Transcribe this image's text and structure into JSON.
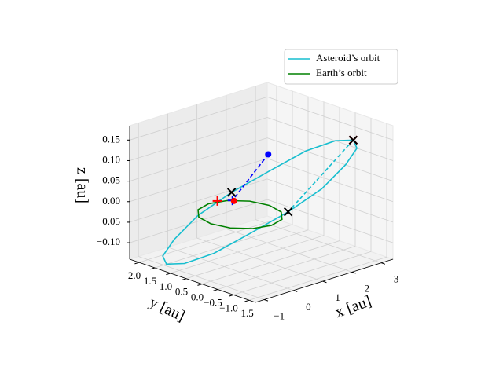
{
  "chart_data": {
    "type": "line3d",
    "xlabel": "x [au]",
    "ylabel": "y [au]",
    "zlabel": "z [au]",
    "xlim": [
      -1.3,
      3.4
    ],
    "ylim": [
      -1.7,
      2.3
    ],
    "zlim": [
      -0.14,
      0.185
    ],
    "xticks": [
      {
        "value": -1,
        "label": "−1"
      },
      0,
      1,
      2,
      3
    ],
    "yticks": [
      {
        "value": -1.5,
        "label": "−1.5"
      },
      {
        "value": -1.0,
        "label": "−1.0"
      },
      {
        "value": -0.5,
        "label": "−0.5"
      },
      {
        "value": 0,
        "label": "0.0"
      },
      {
        "value": 0.5,
        "label": "0.5"
      },
      {
        "value": 1,
        "label": "1.0"
      },
      {
        "value": 1.5,
        "label": "1.5"
      },
      {
        "value": 2,
        "label": "2.0"
      }
    ],
    "zticks": [
      {
        "value": -0.1,
        "label": "−0.10"
      },
      {
        "value": -0.05,
        "label": "−0.05"
      },
      {
        "value": 0,
        "label": "0.00"
      },
      {
        "value": 0.05,
        "label": "0.05"
      },
      {
        "value": 0.1,
        "label": "0.10"
      },
      {
        "value": 0.15,
        "label": "0.15"
      }
    ],
    "grid": true,
    "legend": "upper right",
    "series": [
      {
        "name": "Asteroid’s orbit",
        "color": "#17becf",
        "x": [
          2.9,
          2.76,
          2.34,
          1.73,
          1,
          0.27,
          -0.34,
          -0.76,
          -0.9,
          -0.76,
          -0.34,
          0.27,
          1,
          1.73,
          2.34,
          2.76,
          2.9
        ],
        "y": [
          -0.9,
          -0.46,
          0.09,
          0.67,
          1.2,
          1.59,
          1.78,
          1.75,
          1.5,
          1.06,
          0.51,
          -0.07,
          -0.6,
          -0.99,
          -1.18,
          -1.15,
          -0.9
        ],
        "z": [
          0.14,
          0.13,
          0.1,
          0.05,
          0,
          -0.05,
          -0.1,
          -0.13,
          -0.14,
          -0.13,
          -0.1,
          -0.05,
          0,
          0.05,
          0.1,
          0.13,
          0.14
        ]
      },
      {
        "name": "Earth’s orbit",
        "color": "#008000",
        "x": [
          1,
          0.87,
          0.5,
          0,
          -0.5,
          -0.87,
          -1,
          -0.87,
          -0.5,
          0,
          0.5,
          0.87,
          1
        ],
        "y": [
          0,
          0.5,
          0.87,
          1,
          0.87,
          0.5,
          0,
          -0.5,
          -0.87,
          -1,
          -0.87,
          -0.5,
          0
        ],
        "z": [
          0,
          0,
          0,
          0,
          0,
          0,
          0,
          0,
          0,
          0,
          0,
          0,
          0
        ]
      }
    ],
    "segments": [
      {
        "color": "#17becf",
        "dashed": true,
        "from": [
          2.9,
          -0.9,
          0.14
        ],
        "to": [
          1,
          -0.6,
          0
        ]
      },
      {
        "color": "#0000ff",
        "dashed": true,
        "from": [
          1.5,
          0.5,
          0.1
        ],
        "to": [
          0.6,
          0.8,
          0
        ]
      }
    ],
    "markers": [
      {
        "symbol": "x",
        "color": "#ff0000",
        "x": 2.9,
        "y": -0.9,
        "z": 0.14
      },
      {
        "symbol": "x",
        "color": "#000000",
        "x": 2.9,
        "y": -0.9,
        "z": 0.14
      },
      {
        "symbol": "x",
        "color": "#000000",
        "x": 1,
        "y": -0.6,
        "z": 0
      },
      {
        "symbol": "x",
        "color": "#000000",
        "x": 1,
        "y": 1.2,
        "z": 0
      },
      {
        "symbol": "+",
        "color": "#ff0000",
        "x": 0.3,
        "y": 1.0,
        "z": 0
      },
      {
        "symbol": "+",
        "color": "#0000ff",
        "x": 0.6,
        "y": 0.8,
        "z": 0
      },
      {
        "symbol": "o",
        "color": "#ff0000",
        "x": 0.6,
        "y": 0.75,
        "z": 0
      },
      {
        "symbol": "o",
        "color": "#0000ff",
        "x": 1.5,
        "y": 0.5,
        "z": 0.1
      }
    ]
  }
}
